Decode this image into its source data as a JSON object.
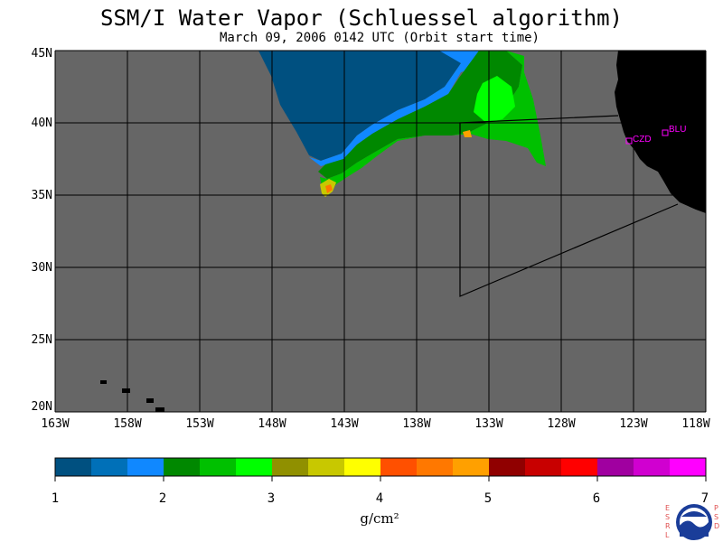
{
  "title": "SSM/I Water Vapor (Schluessel algorithm)",
  "subtitle": "March 09, 2006  0142 UTC  (Orbit start time)",
  "map": {
    "lat_labels": [
      "45N",
      "40N",
      "35N",
      "30N",
      "25N",
      "20N"
    ],
    "lon_labels": [
      "163W",
      "158W",
      "153W",
      "148W",
      "143W",
      "138W",
      "133W",
      "128W",
      "123W",
      "118W"
    ],
    "stations": [
      {
        "name": "CZD",
        "color": "#ff00ff"
      },
      {
        "name": "BLU",
        "color": "#ff00ff"
      }
    ],
    "ocean_color": "#666666",
    "land_color": "#000000"
  },
  "colorbar": {
    "colors": [
      "#005080",
      "#0070b8",
      "#1088ff",
      "#008800",
      "#00c000",
      "#00ff00",
      "#909000",
      "#c8c800",
      "#ffff00",
      "#ff5000",
      "#ff7800",
      "#ffa000",
      "#900000",
      "#c80000",
      "#ff0000",
      "#a000a0",
      "#d000d0",
      "#ff00ff"
    ],
    "ticks": [
      "1",
      "2",
      "3",
      "4",
      "5",
      "6",
      "7"
    ],
    "unit": "g/cm²"
  },
  "logo": {
    "left_letters": [
      "E",
      "S",
      "R",
      "L"
    ],
    "right_letters": [
      "P",
      "S",
      "D"
    ],
    "center": "NOAA"
  }
}
